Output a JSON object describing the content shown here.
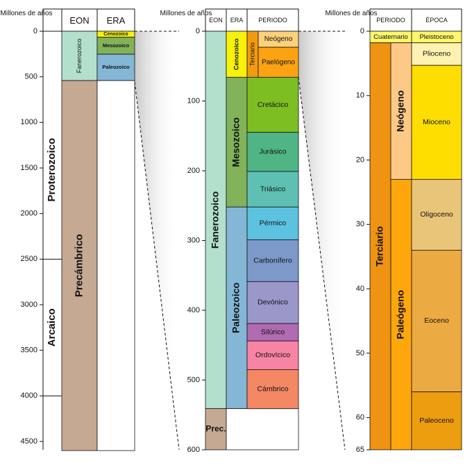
{
  "panel1": {
    "axis_title": "Millones de años",
    "eon_header": "EON",
    "era_header": "ERA",
    "ticks": [
      {
        "v": 0,
        "label": "0"
      },
      {
        "v": 500,
        "label": "500"
      },
      {
        "v": 1000,
        "label": "1000"
      },
      {
        "v": 1500,
        "label": "1500"
      },
      {
        "v": 2000,
        "label": "2000"
      },
      {
        "v": 2500,
        "label": "2500"
      },
      {
        "v": 3000,
        "label": "3000"
      },
      {
        "v": 3500,
        "label": "3500"
      },
      {
        "v": 4000,
        "label": "4000"
      },
      {
        "v": 4500,
        "label": "4500"
      }
    ],
    "outer_units": [
      {
        "name": "Proterozoico",
        "start": 541,
        "end": 2500
      },
      {
        "name": "Arcaico",
        "start": 2500,
        "end": 4000
      }
    ],
    "eons": [
      {
        "name": "Fanerozoico",
        "start": 0,
        "end": 541,
        "color": "#b2e0cc"
      },
      {
        "name": "Precámbrico",
        "start": 541,
        "end": 4600,
        "color": "#c5a992"
      }
    ],
    "eras": [
      {
        "name": "Cenozoico",
        "start": 0,
        "end": 66,
        "color": "#f8f10a"
      },
      {
        "name": "Mesozoico",
        "start": 66,
        "end": 252,
        "color": "#82b25a"
      },
      {
        "name": "Paleozoico",
        "start": 252,
        "end": 541,
        "color": "#84b7d6"
      }
    ]
  },
  "panel2": {
    "axis_title": "Millones de años",
    "eon_header": "EON",
    "era_header": "ERA",
    "period_header": "PERIODO",
    "ticks": [
      {
        "v": 0,
        "label": "0"
      },
      {
        "v": 100,
        "label": "100"
      },
      {
        "v": 200,
        "label": "200"
      },
      {
        "v": 300,
        "label": "300"
      },
      {
        "v": 400,
        "label": "400"
      },
      {
        "v": 500,
        "label": "500"
      },
      {
        "v": 600,
        "label": "600"
      }
    ],
    "eons": [
      {
        "name": "Fanerozoico",
        "start": 0,
        "end": 541,
        "color": "#b2e0cc"
      },
      {
        "name": "Prec.",
        "start": 541,
        "end": 600,
        "color": "#c5a992"
      }
    ],
    "eras": [
      {
        "name": "Cenozoico",
        "start": 0,
        "end": 66,
        "color": "#f8f10a"
      },
      {
        "name": "Mesozoico",
        "start": 66,
        "end": 252,
        "color": "#82b25a"
      },
      {
        "name": "Paleozoico",
        "start": 252,
        "end": 541,
        "color": "#84b7d6"
      }
    ],
    "subperiods": [
      {
        "name": "Terciario",
        "start": 0,
        "end": 66,
        "color": "#f39a12"
      }
    ],
    "periods": [
      {
        "name": "Neógeno",
        "start": 0,
        "end": 23,
        "color": "#fdd07a"
      },
      {
        "name": "Paelógeno",
        "start": 23,
        "end": 66,
        "color": "#fca312"
      },
      {
        "name": "Cretácico",
        "start": 66,
        "end": 145,
        "color": "#7dbe22"
      },
      {
        "name": "Jurásico",
        "start": 145,
        "end": 201,
        "color": "#4fb584"
      },
      {
        "name": "Triásico",
        "start": 201,
        "end": 252,
        "color": "#5ec0b2"
      },
      {
        "name": "Pérmico",
        "start": 252,
        "end": 299,
        "color": "#5cc2df"
      },
      {
        "name": "Carbonífero",
        "start": 299,
        "end": 359,
        "color": "#7c99c9"
      },
      {
        "name": "Devónico",
        "start": 359,
        "end": 419,
        "color": "#9c97c9"
      },
      {
        "name": "Silúrico",
        "start": 419,
        "end": 444,
        "color": "#b16bb2"
      },
      {
        "name": "Ordovícico",
        "start": 444,
        "end": 485,
        "color": "#f784a4"
      },
      {
        "name": "Cámbrico",
        "start": 485,
        "end": 541,
        "color": "#f48764"
      }
    ]
  },
  "panel3": {
    "period_header": "PERIODO",
    "epoch_header": "ÉPOCA",
    "ticks": [
      {
        "v": 0,
        "label": "0"
      },
      {
        "v": 10,
        "label": "10"
      },
      {
        "v": 20,
        "label": "20"
      },
      {
        "v": 30,
        "label": "30"
      },
      {
        "v": 40,
        "label": "40"
      },
      {
        "v": 50,
        "label": "50"
      },
      {
        "v": 60,
        "label": "60"
      },
      {
        "v": 65,
        "label": "65"
      }
    ],
    "top_period": {
      "name": "Cuaternario",
      "start": 0,
      "end": 1.8,
      "color": "#fff66a"
    },
    "top_epoch": {
      "name": "Pleistoceno",
      "start": 0,
      "end": 1.8,
      "color": "#fff66a"
    },
    "outer_periods": [
      {
        "name": "Terciario",
        "start": 1.8,
        "end": 65,
        "color": "#ee9312"
      }
    ],
    "sub_periods": [
      {
        "name": "Neógeno",
        "start": 1.8,
        "end": 23,
        "color": "#fec987"
      },
      {
        "name": "Paleógeno",
        "start": 23,
        "end": 65,
        "color": "#fea70c"
      }
    ],
    "epochs": [
      {
        "name": "Plioceno",
        "start": 1.8,
        "end": 5.3,
        "color": "#fff2b0"
      },
      {
        "name": "Mioceno",
        "start": 5.3,
        "end": 23,
        "color": "#fdde00"
      },
      {
        "name": "Oligoceno",
        "start": 23,
        "end": 34,
        "color": "#e9c57a"
      },
      {
        "name": "Eoceno",
        "start": 34,
        "end": 56,
        "color": "#ecaa42"
      },
      {
        "name": "Paleoceno",
        "start": 56,
        "end": 65,
        "color": "#ec9d10"
      }
    ]
  }
}
